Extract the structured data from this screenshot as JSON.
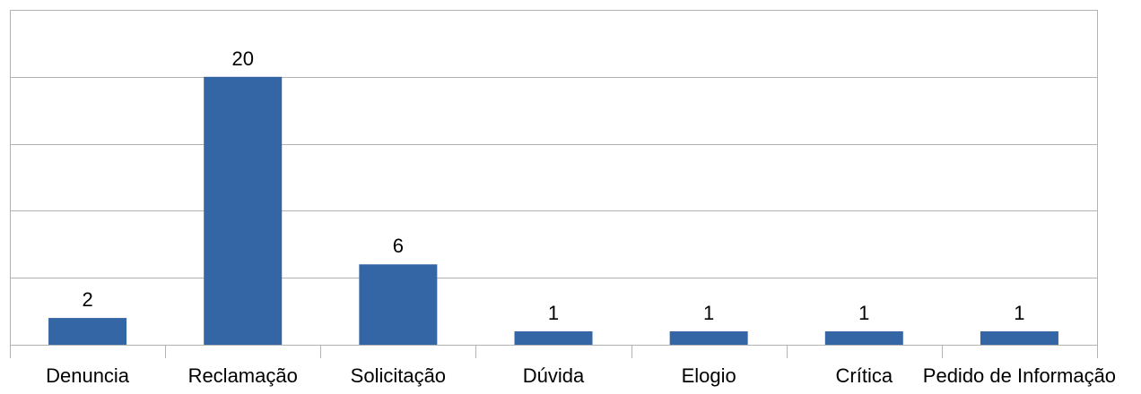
{
  "chart_data": {
    "type": "bar",
    "categories": [
      "Denuncia",
      "Reclamação",
      "Solicitação",
      "Dúvida",
      "Elogio",
      "Crítica",
      "Pedido de Informação"
    ],
    "values": [
      2,
      20,
      6,
      1,
      1,
      1,
      1
    ],
    "title": "",
    "xlabel": "",
    "ylabel": "",
    "ylim": [
      0,
      25
    ],
    "y_ticks": [
      0,
      5,
      10,
      15,
      20,
      25
    ],
    "y_tick_labels_shown": false,
    "grid": true,
    "legend": "none",
    "data_labels": true,
    "colors": {
      "bar": "#3465a4",
      "grid": "#b3b3b3",
      "text": "#000000"
    }
  }
}
